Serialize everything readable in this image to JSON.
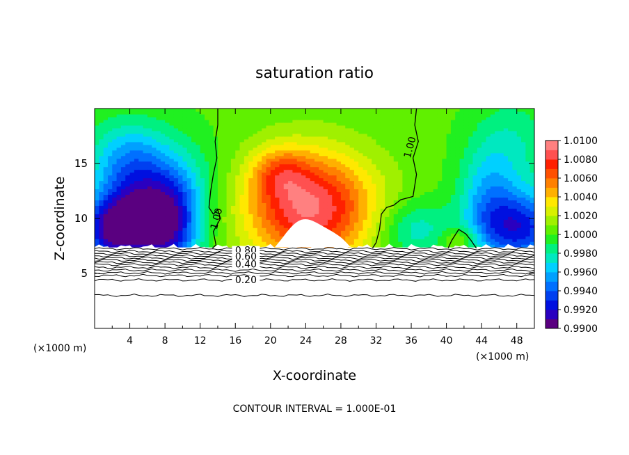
{
  "chart_data": {
    "type": "heatmap",
    "title": "saturation ratio",
    "xlabel": "X-coordinate",
    "ylabel": "Z-coordinate",
    "x_unit_left": "(×1000 m)",
    "x_unit_right": "(×1000 m)",
    "footer": "CONTOUR INTERVAL = 1.000E-01",
    "xlim": [
      0,
      50
    ],
    "ylim": [
      0,
      20
    ],
    "x_ticks": [
      4,
      8,
      12,
      16,
      20,
      24,
      28,
      32,
      36,
      40,
      44,
      48
    ],
    "x_tick_labels": [
      "4",
      "8",
      "12",
      "16",
      "20",
      "24",
      "28",
      "32",
      "36",
      "40",
      "44",
      "48"
    ],
    "y_ticks": [
      5,
      10,
      15
    ],
    "y_tick_labels": [
      "5",
      "10",
      "15"
    ],
    "colorbar": {
      "min": 0.99,
      "max": 1.01,
      "levels": [
        0.99,
        0.991,
        0.992,
        0.993,
        0.994,
        0.995,
        0.996,
        0.997,
        0.998,
        0.999,
        1.0,
        1.001,
        1.002,
        1.003,
        1.004,
        1.005,
        1.006,
        1.007,
        1.008,
        1.009,
        1.01
      ],
      "colors": [
        "#5a0080",
        "#2a00c0",
        "#0010e0",
        "#0040f0",
        "#0070ff",
        "#00a0ff",
        "#00d0ff",
        "#00e8c0",
        "#00f080",
        "#20f020",
        "#60f000",
        "#a0f000",
        "#d8f000",
        "#ffe800",
        "#ffb000",
        "#ff8000",
        "#ff5000",
        "#ff2000",
        "#ff5050",
        "#ff8080"
      ],
      "tick_labels": [
        "0.9900",
        "0.9920",
        "0.9940",
        "0.9960",
        "0.9980",
        "1.0000",
        "1.0020",
        "1.0040",
        "1.0060",
        "1.0080",
        "1.0100"
      ]
    },
    "contour_labels": [
      {
        "text": "1.00",
        "x": 14.2,
        "y": 9.9
      },
      {
        "text": "1.00",
        "x": 36.2,
        "y": 16.4
      },
      {
        "text": "0.80",
        "x": 17.2,
        "y": 6.8
      },
      {
        "text": "0.60",
        "x": 17.2,
        "y": 6.25
      },
      {
        "text": "0.40",
        "x": 17.2,
        "y": 5.55
      },
      {
        "text": "0.20",
        "x": 17.2,
        "y": 4.1
      }
    ],
    "contour_levels": [
      0.2,
      0.4,
      0.6,
      0.8,
      1.0
    ],
    "subsaturated_region_top_z": 7.4,
    "supersaturated_cores": [
      {
        "x": 24,
        "z": 11,
        "value": 1.009
      },
      {
        "x": 41.5,
        "z": 8.0,
        "value": 1.002
      }
    ],
    "dry_cores": [
      {
        "x": 5,
        "z": 10,
        "value": 0.992
      },
      {
        "x": 48,
        "z": 9,
        "value": 0.993
      }
    ]
  }
}
